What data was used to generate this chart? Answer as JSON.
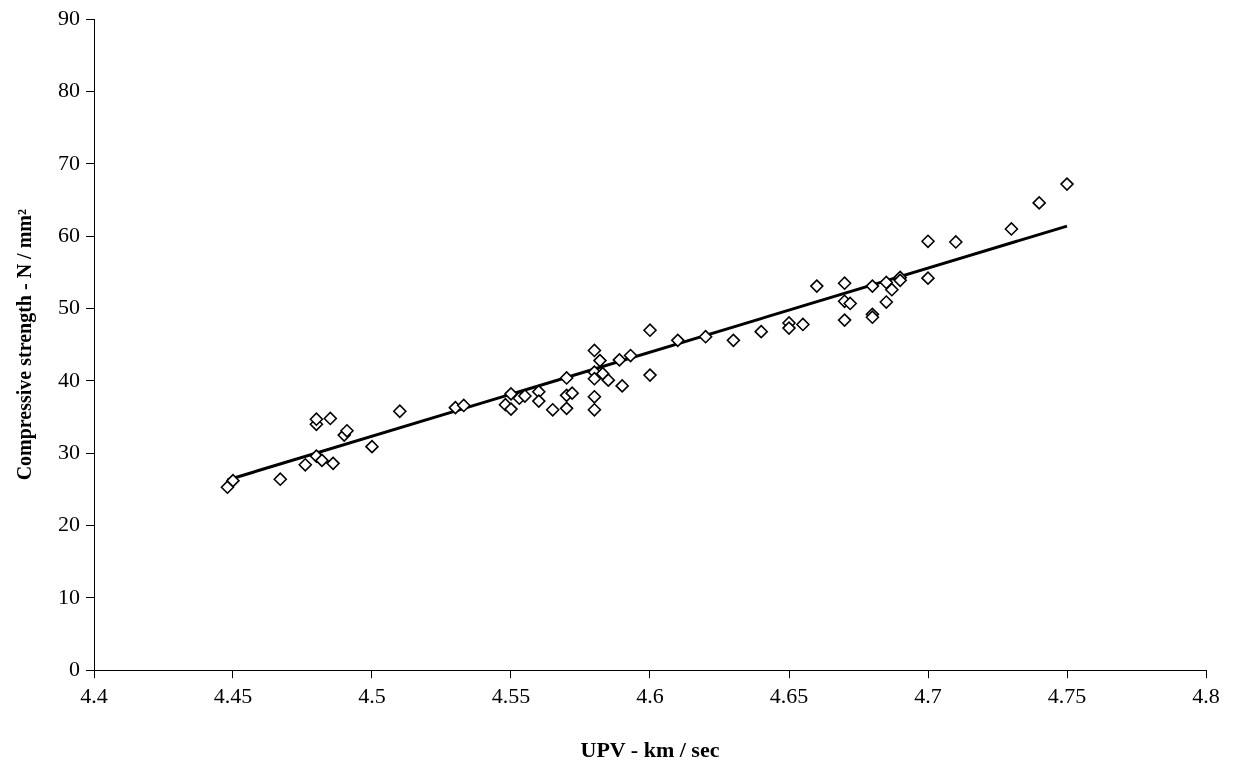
{
  "chart_data": {
    "type": "scatter",
    "xlabel": "UPV - km / sec",
    "ylabel": "Compressive strength - N / mm²",
    "marker": "diamond",
    "grid": false,
    "legend": false,
    "xlim": [
      4.4,
      4.8
    ],
    "xticks": [
      4.4,
      4.45,
      4.5,
      4.55,
      4.6,
      4.65,
      4.7,
      4.75,
      4.8
    ],
    "ylim": [
      0,
      90
    ],
    "yticks": [
      0,
      10,
      20,
      30,
      40,
      50,
      60,
      70,
      80,
      90
    ],
    "series": [
      {
        "color": "#000000",
        "x": [
          4.448,
          4.45,
          4.467,
          4.476,
          4.48,
          4.482,
          4.486,
          4.48,
          4.48,
          4.485,
          4.49,
          4.491,
          4.5,
          4.51,
          4.53,
          4.533,
          4.548,
          4.55,
          4.55,
          4.553,
          4.555,
          4.56,
          4.56,
          4.565,
          4.57,
          4.57,
          4.57,
          4.572,
          4.58,
          4.58,
          4.58,
          4.58,
          4.58,
          4.582,
          4.583,
          4.585,
          4.589,
          4.59,
          4.593,
          4.6,
          4.6,
          4.61,
          4.62,
          4.63,
          4.64,
          4.65,
          4.65,
          4.655,
          4.66,
          4.67,
          4.67,
          4.67,
          4.672,
          4.68,
          4.68,
          4.68,
          4.685,
          4.685,
          4.687,
          4.69,
          4.69,
          4.7,
          4.7,
          4.71,
          4.73,
          4.74,
          4.75
        ],
        "values": [
          25.3,
          26.2,
          26.4,
          28.4,
          29.6,
          29.0,
          28.6,
          34.0,
          34.7,
          34.8,
          32.5,
          33.1,
          30.9,
          35.8,
          36.3,
          36.6,
          36.7,
          38.2,
          36.1,
          37.6,
          37.9,
          38.5,
          37.2,
          36.0,
          36.2,
          38.0,
          40.4,
          38.3,
          44.2,
          41.2,
          40.3,
          37.8,
          36.0,
          42.8,
          41.0,
          40.1,
          42.9,
          39.3,
          43.5,
          47.0,
          40.8,
          45.6,
          46.1,
          45.6,
          46.8,
          48.0,
          47.3,
          47.8,
          53.1,
          53.5,
          51.0,
          48.4,
          50.7,
          53.1,
          49.2,
          48.8,
          53.6,
          50.9,
          52.6,
          54.3,
          53.9,
          59.3,
          54.2,
          59.2,
          61.0,
          64.6,
          67.2
        ]
      },
      {
        "type": "line",
        "color": "#000000",
        "x": [
          4.448,
          4.75
        ],
        "values": [
          26.3,
          61.4
        ],
        "marker": "none",
        "line_style": "solid"
      }
    ]
  }
}
